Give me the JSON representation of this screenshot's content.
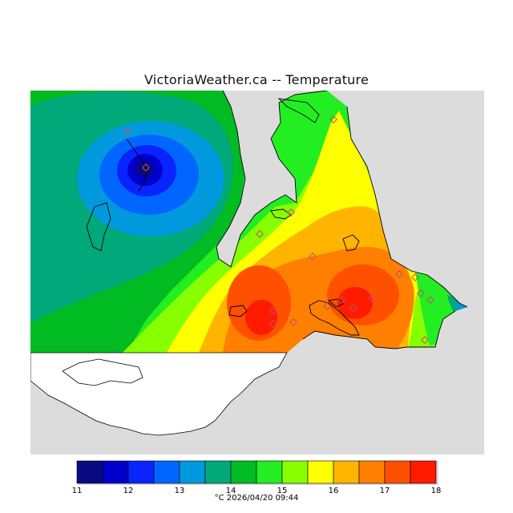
{
  "map": {
    "title": "VictoriaWeather.ca -- Temperature",
    "footer": "°C  2026/04/20 09:44",
    "land_color": "#ffffff",
    "background_color": "#dcdcdc",
    "coast_color": "#000000",
    "station_color": "#c0506a"
  },
  "legend": {
    "ticks": [
      "11",
      "12",
      "13",
      "14",
      "15",
      "16",
      "17",
      "18"
    ],
    "colors": [
      "#0a0a80",
      "#0000cc",
      "#0a24ff",
      "#0066ff",
      "#0099dd",
      "#00a87a",
      "#00bb22",
      "#22ee22",
      "#88ff00",
      "#ffff00",
      "#ffb400",
      "#ff8000",
      "#ff5000",
      "#ff1a00"
    ]
  }
}
